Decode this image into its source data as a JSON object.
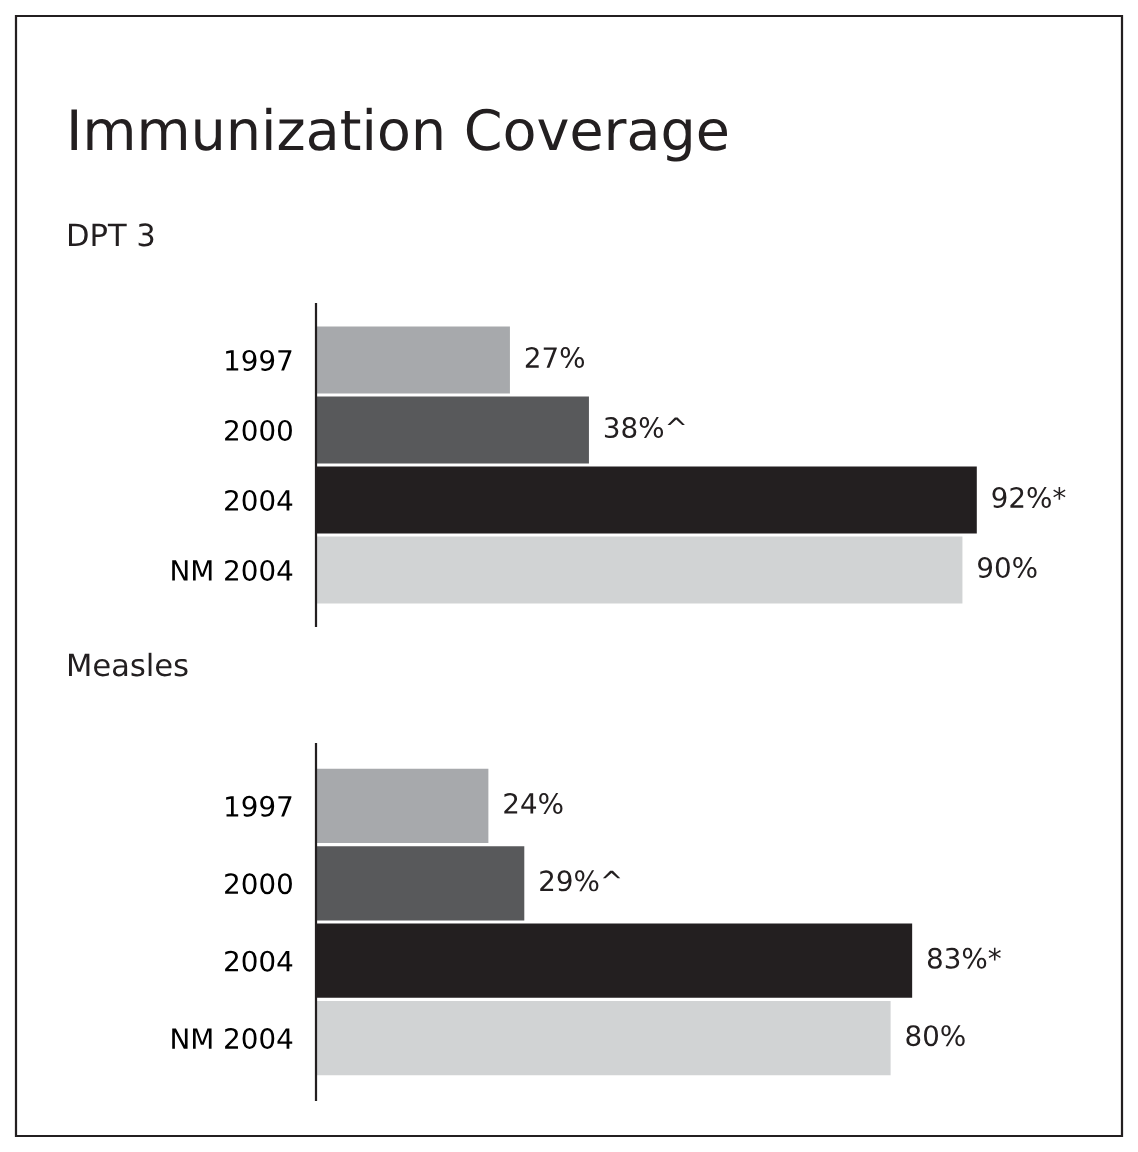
{
  "chart_data": [
    {
      "type": "bar",
      "orientation": "horizontal",
      "title": "Immunization Coverage",
      "subtitle": "DPT 3",
      "categories": [
        "1997",
        "2000",
        "2004",
        "NM 2004"
      ],
      "values": [
        27,
        38,
        92,
        90
      ],
      "colors": [
        "#a7a9ac",
        "#58595b",
        "#231f20",
        "#d1d3d4"
      ],
      "value_labels": [
        "27%",
        "38%^",
        "92%*",
        "90%"
      ],
      "tick_labels": "y",
      "grid": false,
      "legend": false
    },
    {
      "type": "bar",
      "orientation": "horizontal",
      "title": "Measles",
      "categories": [
        "1997",
        "2000",
        "2004",
        "NM 2004"
      ],
      "values": [
        24,
        29,
        83,
        80
      ],
      "colors": [
        "#a7a9ac",
        "#58595b",
        "#231f20",
        "#d1d3d4"
      ],
      "value_labels": [
        "24%",
        "29%^",
        "83%*",
        "80%"
      ],
      "tick_labels": "y",
      "grid": false,
      "legend": false
    }
  ]
}
